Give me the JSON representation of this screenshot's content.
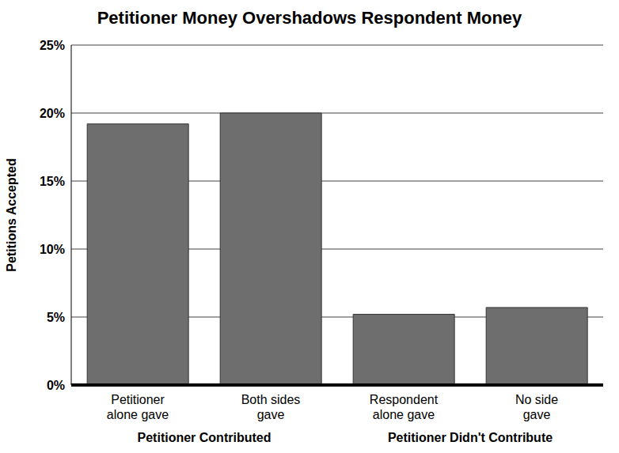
{
  "chart_data": {
    "type": "bar",
    "title": "Petitioner Money Overshadows Respondent Money",
    "y_label": "Petitions Accepted",
    "categories": [
      "Petitioner alone gave",
      "Both sides gave",
      "Respondent alone gave",
      "No side gave"
    ],
    "values": [
      19.2,
      20,
      5.2,
      5.7
    ],
    "color": "#6e6e6e",
    "ylim": [
      0,
      25
    ],
    "yticks": [
      {
        "value": 0,
        "label": "0%"
      },
      {
        "value": 5,
        "label": "5%"
      },
      {
        "value": 10,
        "label": "10%"
      },
      {
        "value": 15,
        "label": "15%"
      },
      {
        "value": 20,
        "label": "20%"
      },
      {
        "value": 25,
        "label": "25%"
      }
    ],
    "grid": true,
    "groups": [
      {
        "label": "Petitioner Contributed",
        "categories": [
          "Petitioner alone gave",
          "Both sides gave"
        ]
      },
      {
        "label": "Petitioner Didn't Contribute",
        "categories": [
          "Respondent alone gave",
          "No side gave"
        ]
      }
    ]
  }
}
